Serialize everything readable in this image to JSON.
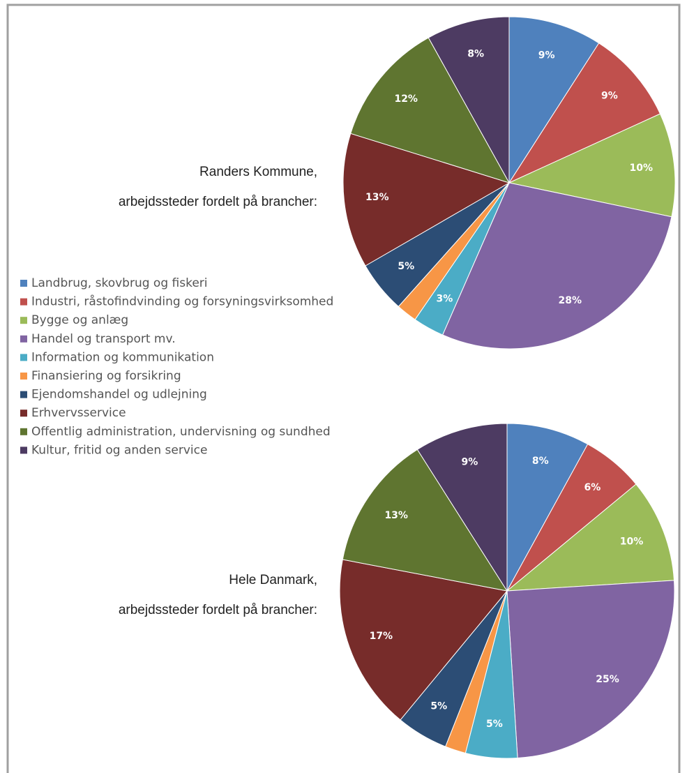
{
  "chart_data": [
    {
      "type": "pie",
      "title": [
        "Randers Kommune,",
        "arbejdssteder fordelt på brancher:"
      ],
      "categories": [
        "Landbrug, skovbrug og fiskeri",
        "Industri, råstofindvinding og forsyningsvirksomhed",
        "Bygge og anlæg",
        "Handel og transport mv.",
        "Information og kommunikation",
        "Finansiering og forsikring",
        "Ejendomshandel og udlejning",
        "Erhvervsservice",
        "Offentlig administration, undervisning og sundhed",
        "Kultur, fritid og anden service"
      ],
      "colors": [
        "#4f81bd",
        "#c0504d",
        "#9bbb59",
        "#8064a2",
        "#4bacc6",
        "#f79646",
        "#2c4d75",
        "#772c2a",
        "#5f7530",
        "#4d3b62"
      ],
      "values": [
        9,
        9,
        10,
        28,
        3,
        2,
        5,
        13,
        12,
        8
      ],
      "value_labels": [
        "9%",
        "9%",
        "10%",
        "28%",
        "3%",
        null,
        "5%",
        "13%",
        "12%",
        "8%"
      ]
    },
    {
      "type": "pie",
      "title": [
        "Hele Danmark,",
        "arbejdssteder fordelt på brancher:"
      ],
      "values": [
        8,
        6,
        10,
        25,
        5,
        2,
        5,
        17,
        13,
        9
      ],
      "value_labels": [
        "8%",
        "6%",
        "10%",
        "25%",
        "5%",
        null,
        "5%",
        "17%",
        "13%",
        "9%"
      ]
    }
  ]
}
